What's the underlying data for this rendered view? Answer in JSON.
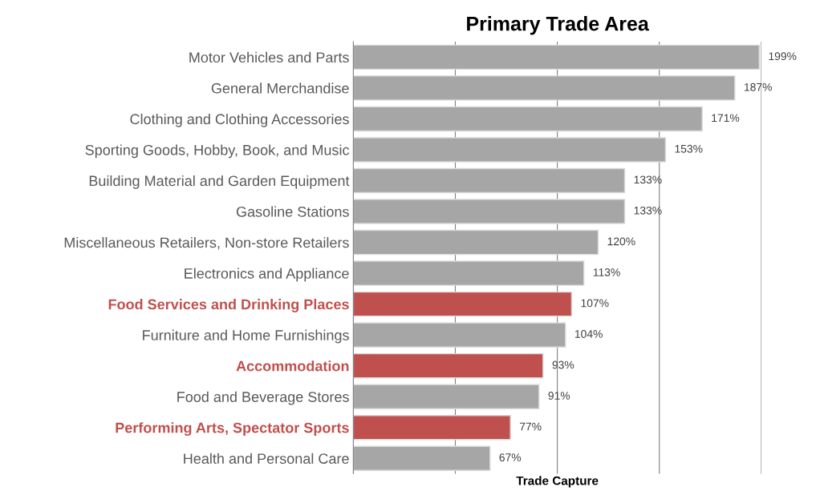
{
  "chart_data": {
    "type": "bar",
    "orientation": "horizontal",
    "title": "Primary Trade Area",
    "xlabel": "Trade Capture",
    "categories": [
      "Motor Vehicles and Parts",
      "General Merchandise",
      "Clothing and Clothing Accessories",
      "Sporting Goods, Hobby, Book, and Music",
      "Building Material and Garden Equipment",
      "Gasoline Stations",
      "Miscellaneous Retailers, Non-store Retailers",
      "Electronics and Appliance",
      "Food Services and Drinking Places",
      "Furniture and Home Furnishings",
      "Accommodation",
      "Food and Beverage Stores",
      "Performing Arts, Spectator Sports",
      "Health and Personal Care"
    ],
    "values": [
      199,
      187,
      171,
      153,
      133,
      133,
      120,
      113,
      107,
      104,
      93,
      91,
      77,
      67
    ],
    "value_labels": [
      "199%",
      "187%",
      "171%",
      "153%",
      "133%",
      "133%",
      "120%",
      "113%",
      "107%",
      "104%",
      "93%",
      "91%",
      "77%",
      "67%"
    ],
    "colors": [
      "#a6a6a6",
      "#a6a6a6",
      "#a6a6a6",
      "#a6a6a6",
      "#a6a6a6",
      "#a6a6a6",
      "#a6a6a6",
      "#a6a6a6",
      "#c0504d",
      "#a6a6a6",
      "#c0504d",
      "#a6a6a6",
      "#c0504d",
      "#a6a6a6"
    ],
    "xlim": [
      0,
      200
    ],
    "xticks": [
      {
        "value": 0,
        "label": null
      },
      {
        "value": 50,
        "label": null
      },
      {
        "value": 100,
        "label": null
      },
      {
        "value": 150,
        "label": null
      },
      {
        "value": 200,
        "label": null
      }
    ],
    "grid": "x",
    "tick_labels": "y",
    "legend": false
  }
}
